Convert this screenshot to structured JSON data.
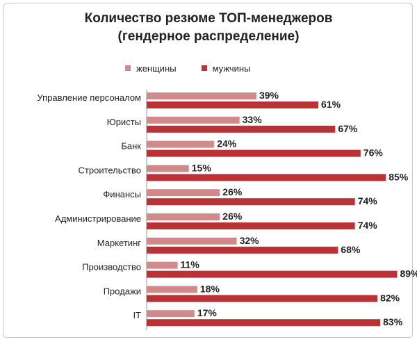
{
  "chart_data": {
    "type": "bar",
    "orientation": "horizontal",
    "title_line1": "Количество резюме ТОП-менеджеров",
    "title_line2": "(гендерное распределение)",
    "categories": [
      "Управление персоналом",
      "Юристы",
      "Банк",
      "Строительство",
      "Финансы",
      "Администрирование",
      "Маркетинг",
      "Производство",
      "Продажи",
      "IT"
    ],
    "series": [
      {
        "name": "женщины",
        "color": "#d08a8a",
        "values": [
          39,
          33,
          24,
          15,
          26,
          26,
          32,
          11,
          18,
          17
        ],
        "labels": [
          "39%",
          "33%",
          "24%",
          "15%",
          "26%",
          "26%",
          "32%",
          "11%",
          "18%",
          "17%"
        ]
      },
      {
        "name": "мужчины",
        "color": "#b83236",
        "values": [
          61,
          67,
          76,
          85,
          74,
          74,
          68,
          89,
          82,
          83
        ],
        "labels": [
          "61%",
          "67%",
          "76%",
          "85%",
          "74%",
          "74%",
          "68%",
          "89%",
          "82%",
          "83%"
        ]
      }
    ],
    "unit": "%",
    "xlim": [
      0,
      100
    ],
    "legend_position": "top",
    "grid": false
  }
}
